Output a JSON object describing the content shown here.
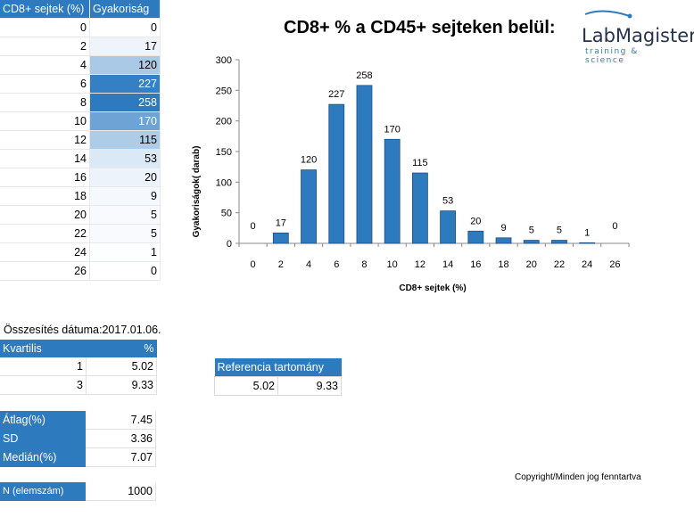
{
  "freq_table": {
    "col1_header": "CD8+ sejtek (%)",
    "col2_header": "Gyakoriság",
    "rows": [
      {
        "x": "0",
        "f": "0",
        "bg": "#ffffff",
        "fg": "#000000"
      },
      {
        "x": "2",
        "f": "17",
        "bg": "#eef4fa",
        "fg": "#000000"
      },
      {
        "x": "4",
        "f": "120",
        "bg": "#a9c9e6",
        "fg": "#000000"
      },
      {
        "x": "6",
        "f": "227",
        "bg": "#3580c4",
        "fg": "#ffffff"
      },
      {
        "x": "8",
        "f": "258",
        "bg": "#2e7abf",
        "fg": "#ffffff"
      },
      {
        "x": "10",
        "f": "170",
        "bg": "#6ea3d5",
        "fg": "#ffffff"
      },
      {
        "x": "12",
        "f": "115",
        "bg": "#adcce8",
        "fg": "#000000"
      },
      {
        "x": "14",
        "f": "53",
        "bg": "#dbe8f5",
        "fg": "#000000"
      },
      {
        "x": "16",
        "f": "20",
        "bg": "#ecf3fa",
        "fg": "#000000"
      },
      {
        "x": "18",
        "f": "9",
        "bg": "#f5f8fc",
        "fg": "#000000"
      },
      {
        "x": "20",
        "f": "5",
        "bg": "#f8fafd",
        "fg": "#000000"
      },
      {
        "x": "22",
        "f": "5",
        "bg": "#f8fafd",
        "fg": "#000000"
      },
      {
        "x": "24",
        "f": "1",
        "bg": "#fdfeff",
        "fg": "#000000"
      },
      {
        "x": "26",
        "f": "0",
        "bg": "#ffffff",
        "fg": "#000000"
      }
    ]
  },
  "summary_date": "Összesítés dátuma:2017.01.06.",
  "quartiles": {
    "header_label": "Kvartilis",
    "header_unit": "%",
    "rows": [
      {
        "q": "1",
        "v": "5.02"
      },
      {
        "q": "3",
        "v": "9.33"
      }
    ]
  },
  "stats": [
    {
      "label": "Átlag(%)",
      "value": "7.45"
    },
    {
      "label": "SD",
      "value": "3.36"
    },
    {
      "label": "Medián(%)",
      "value": "7.07"
    }
  ],
  "n": {
    "label": "N (elemszám)",
    "value": "1000"
  },
  "reference": {
    "title": "Referencia tartomány",
    "low": "5.02",
    "high": "9.33"
  },
  "copyright": "Copyright/Minden jog fenntartva",
  "logo": {
    "main": "LabMagister",
    "sub": "training & science"
  },
  "chart_data": {
    "type": "bar",
    "title": "CD8+ % a CD45+ sejteken belül:",
    "xlabel": "CD8+ sejtek (%)",
    "ylabel": "Gyakoriságok( darab)",
    "categories": [
      "0",
      "2",
      "4",
      "6",
      "8",
      "10",
      "12",
      "14",
      "16",
      "18",
      "20",
      "22",
      "24",
      "26"
    ],
    "values": [
      0,
      17,
      120,
      227,
      258,
      170,
      115,
      53,
      20,
      9,
      5,
      5,
      1,
      0
    ],
    "ylim": [
      0,
      300
    ],
    "yticks": [
      0,
      50,
      100,
      150,
      200,
      250,
      300
    ],
    "bar_color": "#2e7abf",
    "grid": false,
    "legend": "none"
  }
}
